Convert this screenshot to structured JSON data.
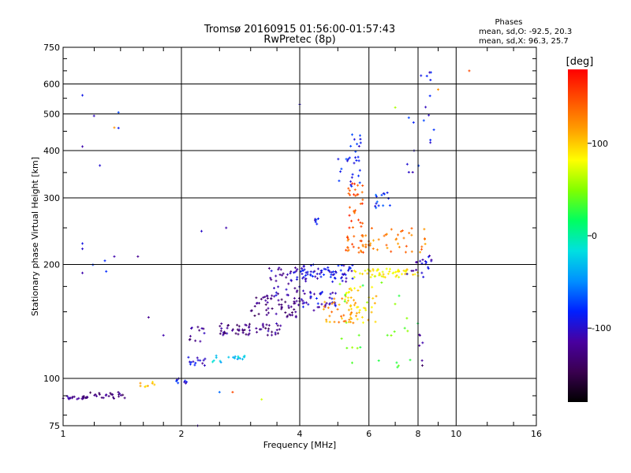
{
  "header": {
    "title_line1": "Tromsø 20160915 01:56:00-01:57:43",
    "title_line2": "RwPretec (8p)",
    "stats_title": "Phases",
    "stats_o": "mean, sd,O: -92.5, 20.3",
    "stats_x": "mean, sd,X:  96.3, 25.7"
  },
  "colorbar": {
    "unit_label": "[deg]",
    "range": [
      -180,
      180
    ],
    "ticks": [
      {
        "value": 100,
        "label": "100"
      },
      {
        "value": 0,
        "label": "0"
      },
      {
        "value": -100,
        "label": "-100"
      }
    ],
    "colors": [
      "#000000",
      "#3a0050",
      "#4800a0",
      "#0020ff",
      "#0090ff",
      "#00e0e0",
      "#00ff60",
      "#80ff00",
      "#ffff00",
      "#ffa000",
      "#ff5000",
      "#ff0000"
    ]
  },
  "chart_data": {
    "type": "scatter",
    "title": "Tromsø 20160915 01:56:00-01:57:43",
    "subtitle": "RwPretec (8p)",
    "xlabel": "Frequency [MHz]",
    "ylabel": "Stationary phase Virtual Height [km]",
    "xscale": "log",
    "yscale": "log",
    "xlim": [
      1,
      16
    ],
    "ylim": [
      75,
      750
    ],
    "grid": true,
    "x_ticks": [
      {
        "value": 1,
        "label": "1"
      },
      {
        "value": 2,
        "label": "2"
      },
      {
        "value": 4,
        "label": "4"
      },
      {
        "value": 6,
        "label": "6"
      },
      {
        "value": 8,
        "label": "8"
      },
      {
        "value": 10,
        "label": "10"
      },
      {
        "value": 16,
        "label": "16"
      }
    ],
    "y_ticks": [
      {
        "value": 75,
        "label": "75"
      },
      {
        "value": 100,
        "label": "100"
      },
      {
        "value": 200,
        "label": "200"
      },
      {
        "value": 300,
        "label": "300"
      },
      {
        "value": 400,
        "label": "400"
      },
      {
        "value": 500,
        "label": "500"
      },
      {
        "value": 600,
        "label": "600"
      },
      {
        "value": 750,
        "label": "750"
      }
    ],
    "point_groups": [
      {
        "name": "",
        "phase": -120,
        "f_range": [
          1.0,
          1.15
        ],
        "h_range": [
          88,
          90
        ],
        "count": 22
      },
      {
        "name": "",
        "phase": -130,
        "f_range": [
          1.15,
          1.45
        ],
        "h_range": [
          88,
          92
        ],
        "count": 26
      },
      {
        "name": "",
        "phase": 100,
        "f_range": [
          1.55,
          1.75
        ],
        "h_range": [
          95,
          99
        ],
        "count": 8
      },
      {
        "name": "",
        "phase": -90,
        "f_range": [
          1.9,
          2.1
        ],
        "h_range": [
          97,
          100
        ],
        "count": 9
      },
      {
        "name": "",
        "phase": -100,
        "f_range": [
          2.0,
          2.3
        ],
        "h_range": [
          108,
          114
        ],
        "count": 14
      },
      {
        "name": "",
        "phase": -120,
        "f_range": [
          2.05,
          2.3
        ],
        "h_range": [
          125,
          138
        ],
        "count": 12
      },
      {
        "name": "",
        "phase": -30,
        "f_range": [
          2.4,
          2.9
        ],
        "h_range": [
          110,
          116
        ],
        "count": 18
      },
      {
        "name": "",
        "phase": -125,
        "f_range": [
          2.5,
          3.6
        ],
        "h_range": [
          130,
          140
        ],
        "count": 60
      },
      {
        "name": "",
        "phase": -130,
        "f_range": [
          3.0,
          4.0
        ],
        "h_range": [
          145,
          165
        ],
        "count": 55
      },
      {
        "name": "",
        "phase": -110,
        "f_range": [
          3.3,
          4.2
        ],
        "h_range": [
          165,
          200
        ],
        "count": 45
      },
      {
        "name": "",
        "phase": -95,
        "f_range": [
          4.0,
          5.5
        ],
        "h_range": [
          180,
          200
        ],
        "count": 70
      },
      {
        "name": "",
        "phase": -100,
        "f_range": [
          4.0,
          5.0
        ],
        "h_range": [
          150,
          170
        ],
        "count": 40
      },
      {
        "name": "",
        "phase": 120,
        "f_range": [
          4.6,
          5.6
        ],
        "h_range": [
          140,
          165
        ],
        "count": 35
      },
      {
        "name": "",
        "phase": 95,
        "f_range": [
          5.2,
          6.3
        ],
        "h_range": [
          140,
          175
        ],
        "count": 40
      },
      {
        "name": "",
        "phase": 85,
        "f_range": [
          5.5,
          8.0
        ],
        "h_range": [
          185,
          195
        ],
        "count": 55
      },
      {
        "name": "",
        "phase": 140,
        "f_range": [
          5.2,
          6.0
        ],
        "h_range": [
          215,
          240
        ],
        "count": 30
      },
      {
        "name": "",
        "phase": 150,
        "f_range": [
          5.3,
          5.8
        ],
        "h_range": [
          250,
          330
        ],
        "count": 30
      },
      {
        "name": "",
        "phase": 130,
        "f_range": [
          6.0,
          8.5
        ],
        "h_range": [
          215,
          250
        ],
        "count": 35
      },
      {
        "name": "",
        "phase": -85,
        "f_range": [
          5.0,
          5.8
        ],
        "h_range": [
          320,
          450
        ],
        "count": 30
      },
      {
        "name": "",
        "phase": -80,
        "f_range": [
          6.2,
          6.8
        ],
        "h_range": [
          280,
          310
        ],
        "count": 14
      },
      {
        "name": "",
        "phase": -100,
        "f_range": [
          7.5,
          8.8
        ],
        "h_range": [
          185,
          215
        ],
        "count": 20
      },
      {
        "name": "",
        "phase": 40,
        "f_range": [
          5.0,
          8.0
        ],
        "h_range": [
          105,
          180
        ],
        "count": 28
      },
      {
        "name": "",
        "phase": -90,
        "f_range": [
          4.3,
          4.5
        ],
        "h_range": [
          255,
          265
        ],
        "count": 6
      },
      {
        "name": "",
        "phase": -90,
        "f_range": [
          7.5,
          9.0
        ],
        "h_range": [
          350,
          650
        ],
        "count": 18
      },
      {
        "name": "",
        "phase": -130,
        "f_range": [
          8.0,
          8.6
        ],
        "h_range": [
          105,
          135
        ],
        "count": 6
      },
      {
        "name": "",
        "phase": -90,
        "f_range": [
          1.1,
          1.4
        ],
        "h_range": [
          180,
          560
        ],
        "count": 8
      }
    ],
    "points": [
      {
        "f": 10.8,
        "h": 650,
        "phase": 150
      },
      {
        "f": 9.0,
        "h": 580,
        "phase": 120
      },
      {
        "f": 4.0,
        "h": 530,
        "phase": -100
      },
      {
        "f": 1.12,
        "h": 560,
        "phase": -90
      },
      {
        "f": 1.35,
        "h": 460,
        "phase": 120
      },
      {
        "f": 1.12,
        "h": 410,
        "phase": -110
      },
      {
        "f": 1.12,
        "h": 220,
        "phase": -100
      },
      {
        "f": 1.35,
        "h": 210,
        "phase": -110
      },
      {
        "f": 1.55,
        "h": 210,
        "phase": -120
      },
      {
        "f": 1.12,
        "h": 190,
        "phase": -110
      },
      {
        "f": 2.25,
        "h": 245,
        "phase": -100
      },
      {
        "f": 2.6,
        "h": 250,
        "phase": -110
      },
      {
        "f": 3.2,
        "h": 88,
        "phase": 70
      },
      {
        "f": 2.7,
        "h": 92,
        "phase": 150
      },
      {
        "f": 2.5,
        "h": 92,
        "phase": -60
      },
      {
        "f": 1.8,
        "h": 130,
        "phase": -110
      },
      {
        "f": 1.65,
        "h": 145,
        "phase": -120
      },
      {
        "f": 2.2,
        "h": 75,
        "phase": -110
      },
      {
        "f": 7.0,
        "h": 520,
        "phase": 60
      },
      {
        "f": 8.6,
        "h": 420,
        "phase": -100
      }
    ]
  }
}
